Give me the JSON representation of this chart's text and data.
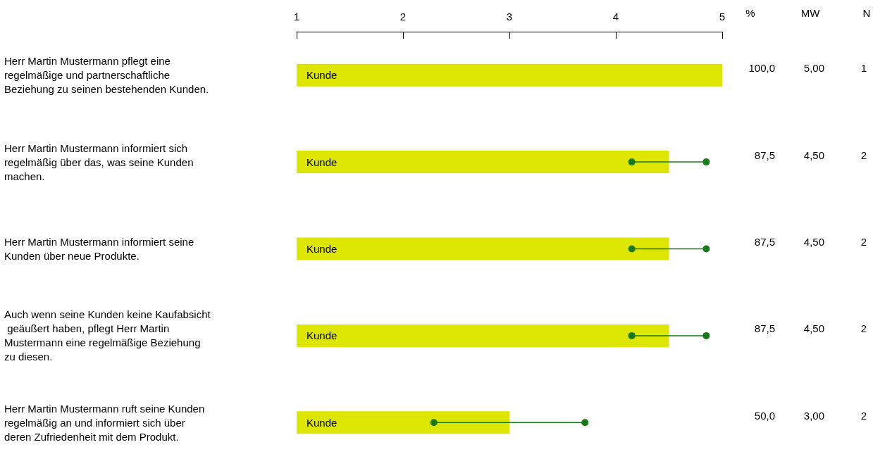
{
  "chart_data": {
    "type": "bar",
    "orientation": "horizontal",
    "categories": [
      "Herr Martin Mustermann pflegt eine regelmäßige und partnerschaftliche Beziehung zu seinen bestehenden Kunden.",
      "Herr Martin Mustermann informiert sich regelmäßig über das, was seine Kunden machen.",
      "Herr Martin Mustermann informiert seine Kunden über neue Produkte.",
      "Auch wenn seine Kunden keine Kaufabsicht geäußert haben, pflegt Herr Martin Mustermann eine regelmäßige Beziehung zu diesen.",
      "Herr Martin Mustermann ruft seine Kunden regelmäßig an und informiert sich über deren Zufriedenheit mit dem Produkt."
    ],
    "series": [
      {
        "name": "Kunde",
        "color": "#dde600",
        "values": [
          5.0,
          4.5,
          4.5,
          4.5,
          3.0
        ],
        "errors": [
          null,
          0.35,
          0.35,
          0.35,
          0.71
        ],
        "value_labels": [
          "5,00",
          "4,50",
          "4,50",
          "4,50",
          "3,00"
        ]
      }
    ],
    "xlim": [
      1,
      5
    ],
    "xticks": [
      1,
      2,
      3,
      4,
      5
    ],
    "annotations": [
      "%",
      "MW",
      "N",
      "100,0",
      "1",
      "87,5",
      "2",
      "87,5",
      "2",
      "87,5",
      "2",
      "50,0",
      "2"
    ],
    "marker": "circle",
    "grid": false,
    "legend": false
  }
}
